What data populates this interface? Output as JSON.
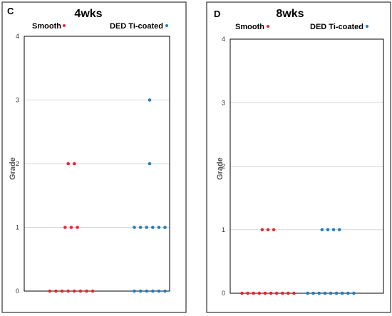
{
  "chart_data": [
    {
      "type": "scatter",
      "panel_label": "C",
      "title": "4wks",
      "ylabel": "Grade",
      "ylim": [
        0,
        4
      ],
      "y_ticks": [
        0,
        1,
        2,
        3,
        4
      ],
      "grid": true,
      "legend_position": "top",
      "categories": [
        "Smooth",
        "DED Ti-coated"
      ],
      "series": [
        {
          "name": "Smooth",
          "color": "#e8262c",
          "values": [
            0,
            0,
            0,
            0,
            0,
            0,
            0,
            0,
            1,
            1,
            1,
            2,
            2
          ]
        },
        {
          "name": "DED Ti-coated",
          "color": "#1f7ec1",
          "values": [
            0,
            0,
            0,
            0,
            0,
            0,
            1,
            1,
            1,
            1,
            1,
            1,
            2,
            3
          ]
        }
      ]
    },
    {
      "type": "scatter",
      "panel_label": "D",
      "title": "8wks",
      "ylabel": "Grade",
      "ylim": [
        0,
        4
      ],
      "y_ticks": [
        0,
        1,
        2,
        3,
        4
      ],
      "grid": true,
      "legend_position": "top",
      "categories": [
        "Smooth",
        "DED Ti-coated"
      ],
      "series": [
        {
          "name": "Smooth",
          "color": "#e8262c",
          "values": [
            0,
            0,
            0,
            0,
            0,
            0,
            0,
            0,
            0,
            0,
            1,
            1,
            1
          ]
        },
        {
          "name": "DED Ti-coated",
          "color": "#1f7ec1",
          "values": [
            0,
            0,
            0,
            0,
            0,
            0,
            0,
            0,
            0,
            1,
            1,
            1,
            1
          ]
        }
      ]
    }
  ]
}
